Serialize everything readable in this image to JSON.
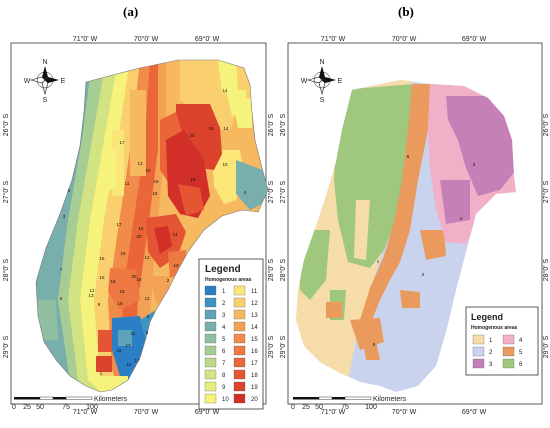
{
  "panels": [
    {
      "label": "(a)",
      "lon_ticks": [
        "71°0' W",
        "70°0' W",
        "69°0' W"
      ],
      "lat_ticks": [
        "26°0' S",
        "27°0' S",
        "28°0' S",
        "29°0' S"
      ],
      "compass": [
        "N",
        "S",
        "E",
        "W"
      ],
      "legend": {
        "title": "Legend",
        "subtitle": "Homogenous areas",
        "classes": [
          {
            "id": "1",
            "color": "#2b7fc4"
          },
          {
            "id": "2",
            "color": "#3d93c2"
          },
          {
            "id": "3",
            "color": "#5ea3b7"
          },
          {
            "id": "4",
            "color": "#78afac"
          },
          {
            "id": "5",
            "color": "#8fbea0"
          },
          {
            "id": "6",
            "color": "#a6cd93"
          },
          {
            "id": "7",
            "color": "#bcd88a"
          },
          {
            "id": "8",
            "color": "#d2e384"
          },
          {
            "id": "9",
            "color": "#e7ed7e"
          },
          {
            "id": "10",
            "color": "#f6f37c"
          },
          {
            "id": "11",
            "color": "#fbe778"
          },
          {
            "id": "12",
            "color": "#f9d06d"
          },
          {
            "id": "13",
            "color": "#f6b960"
          },
          {
            "id": "14",
            "color": "#f3a255"
          },
          {
            "id": "15",
            "color": "#f08b4a"
          },
          {
            "id": "16",
            "color": "#ed7841"
          },
          {
            "id": "17",
            "color": "#ea6639"
          },
          {
            "id": "18",
            "color": "#e45533"
          },
          {
            "id": "19",
            "color": "#dc432d"
          },
          {
            "id": "20",
            "color": "#d12f28"
          }
        ]
      },
      "zone_labels": [
        "14",
        "20",
        "15",
        "14",
        "10",
        "4",
        "17",
        "19",
        "13",
        "11",
        "15",
        "19",
        "18",
        "5",
        "3",
        "16",
        "20",
        "12",
        "14",
        "13",
        "2",
        "7",
        "17",
        "19",
        "16",
        "15",
        "12",
        "13",
        "6",
        "9",
        "18",
        "10",
        "11",
        "20",
        "18",
        "16",
        "17",
        "11",
        "12",
        "5",
        "17",
        "3",
        "15",
        "1"
      ],
      "scalebar": {
        "ticks": [
          "0",
          "25",
          "50",
          "75",
          "100"
        ],
        "unit": "Kilometers"
      }
    },
    {
      "label": "(b)",
      "lon_ticks": [
        "71°0' W",
        "70°0' W",
        "69°0' W"
      ],
      "lat_ticks": [
        "26°0' S",
        "27°0' S",
        "28°0' S",
        "29°0' S"
      ],
      "compass": [
        "N",
        "S",
        "E",
        "W"
      ],
      "legend": {
        "title": "Legend",
        "subtitle": "Homogenous areas",
        "classes": [
          {
            "id": "1",
            "color": "#f6dca8"
          },
          {
            "id": "2",
            "color": "#c9d3ee"
          },
          {
            "id": "3",
            "color": "#c580b8"
          },
          {
            "id": "4",
            "color": "#f1b0c8"
          },
          {
            "id": "5",
            "color": "#ea9a5c"
          },
          {
            "id": "6",
            "color": "#9fc77d"
          }
        ]
      },
      "zone_labels": [
        "3",
        "6",
        "4",
        "1",
        "2",
        "5"
      ],
      "scalebar": {
        "ticks": [
          "0",
          "25",
          "50",
          "75",
          "100"
        ],
        "unit": "Kilometers"
      }
    }
  ]
}
